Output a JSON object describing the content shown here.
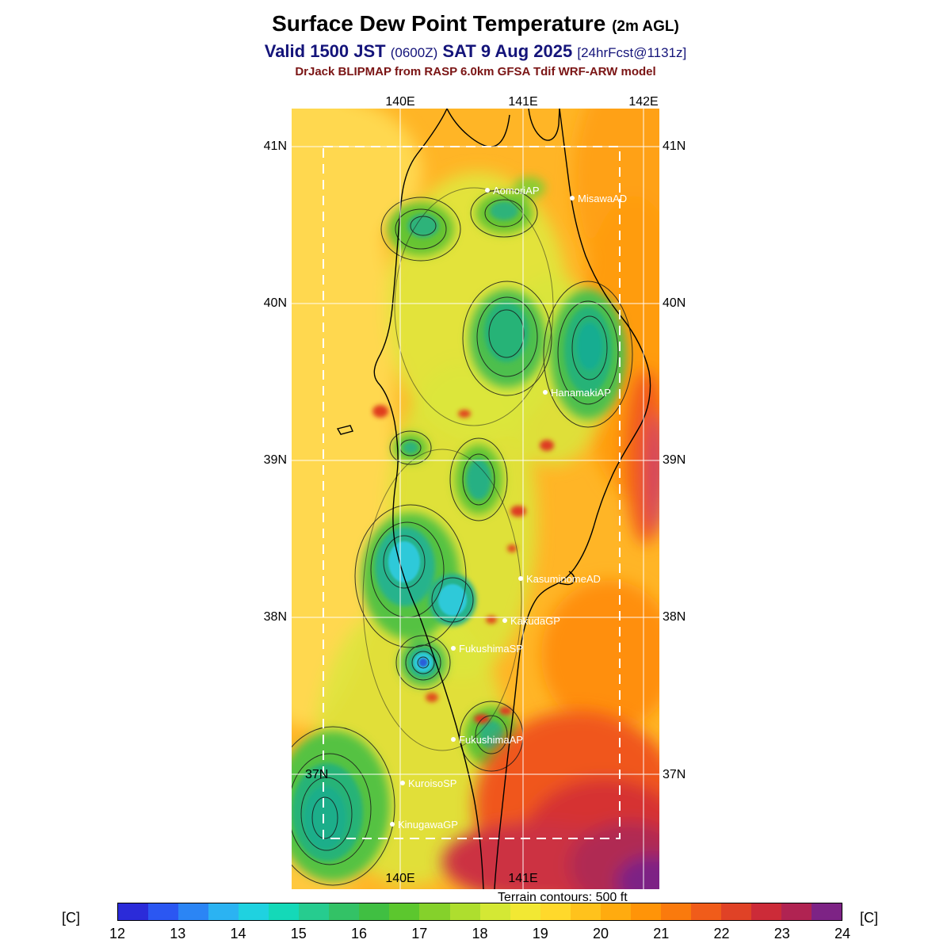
{
  "header": {
    "title": "Surface Dew Point Temperature",
    "title_suffix": "(2m AGL)",
    "valid_prefix": "Valid 1500 JST",
    "valid_zulu": "(0600Z)",
    "valid_date": "SAT 9 Aug 2025",
    "valid_fcst": "[24hrFcst@1131z]",
    "model_line": "DrJack BLIPMAP from RASP 6.0km GFSA Tdif WRF-ARW model"
  },
  "map": {
    "lon_top": [
      "140E",
      "141E",
      "142E"
    ],
    "lon_bottom": [
      "140E",
      "141E"
    ],
    "lat_left": [
      "41N",
      "40N",
      "39N",
      "38N",
      "37N"
    ],
    "lat_right": [
      "41N",
      "40N",
      "39N",
      "38N",
      "37N"
    ],
    "stations": [
      {
        "name": "AomoriAP"
      },
      {
        "name": "MisawaAD"
      },
      {
        "name": "HanamakiAP"
      },
      {
        "name": "KasuminomeAD"
      },
      {
        "name": "KakudaGP"
      },
      {
        "name": "FukushimaSP"
      },
      {
        "name": "FukushimaAP"
      },
      {
        "name": "KuroisoSP"
      },
      {
        "name": "KinugawaGP"
      }
    ],
    "terrain_note": "Terrain contours: 500 ft"
  },
  "colorbar": {
    "unit_left": "[C]",
    "unit_right": "[C]",
    "ticks": [
      "12",
      "13",
      "14",
      "15",
      "16",
      "17",
      "18",
      "19",
      "20",
      "21",
      "22",
      "23",
      "24"
    ],
    "segment_colors": [
      "#2b2bd9",
      "#2b57f2",
      "#2b85f5",
      "#2bb3f2",
      "#1fd2e0",
      "#14d9b8",
      "#26cc8f",
      "#33c266",
      "#40bf42",
      "#5cc72e",
      "#85d12b",
      "#aede2e",
      "#d4e834",
      "#f2e833",
      "#ffd92b",
      "#ffc21c",
      "#ffab0f",
      "#ff9408",
      "#fa7a0d",
      "#f05c1a",
      "#e04226",
      "#cc2b38",
      "#b02352",
      "#7d2385"
    ]
  },
  "chart_data": {
    "type": "heatmap",
    "title": "Surface Dew Point Temperature (2m AGL)",
    "units": "C",
    "scale_min": 12,
    "scale_max": 24,
    "scale_ticks": [
      12,
      13,
      14,
      15,
      16,
      17,
      18,
      19,
      20,
      21,
      22,
      23,
      24
    ],
    "lon_range": [
      "140E",
      "142E"
    ],
    "lat_range": [
      "37N",
      "41N"
    ],
    "legend_position": "bottom",
    "notes": "Filled contour dew point field over Tohoku Japan; low (green/cyan/blue) values over mountains, high (red/purple) values offshore southeast"
  }
}
